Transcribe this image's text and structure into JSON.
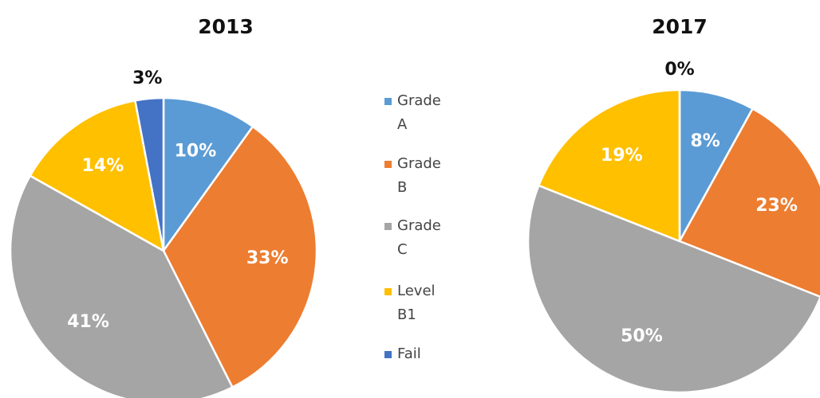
{
  "legend": {
    "labels": [
      "Grade A",
      "Grade B",
      "Grade C",
      "Level B1",
      "Fail"
    ],
    "colors": [
      "#5b9bd5",
      "#ed7d31",
      "#a5a5a5",
      "#ffc000",
      "#4472c4"
    ]
  },
  "chart_data": [
    {
      "type": "pie",
      "title": "2013",
      "values": [
        10,
        33,
        41,
        14,
        3
      ],
      "value_labels": [
        "10%",
        "33%",
        "41%",
        "14%",
        "3%"
      ]
    },
    {
      "type": "pie",
      "title": "2017",
      "values": [
        8,
        23,
        50,
        19,
        0
      ],
      "value_labels": [
        "8%",
        "23%",
        "50%",
        "19%",
        "0%"
      ]
    }
  ]
}
